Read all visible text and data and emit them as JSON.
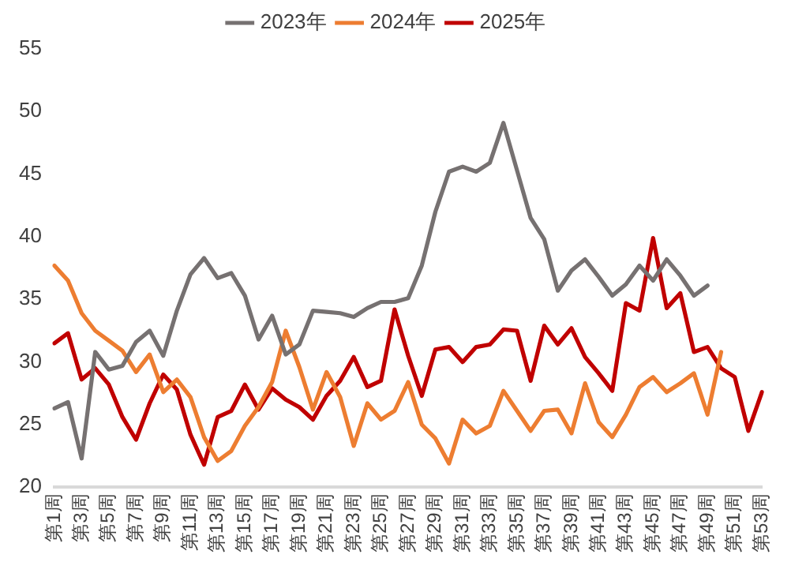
{
  "chart_data": {
    "type": "line",
    "categories": [
      "第1周",
      null,
      "第3周",
      null,
      "第5周",
      null,
      "第7周",
      null,
      "第9周",
      null,
      "第11周",
      null,
      "第13周",
      null,
      "第15周",
      null,
      "第17周",
      null,
      "第19周",
      null,
      "第21周",
      null,
      "第23周",
      null,
      "第25周",
      null,
      "第27周",
      null,
      "第29周",
      null,
      "第31周",
      null,
      "第33周",
      null,
      "第35周",
      null,
      "第37周",
      null,
      "第39周",
      null,
      "第41周",
      null,
      "第43周",
      null,
      "第45周",
      null,
      "第47周",
      null,
      "第49周",
      null,
      "第51周",
      null,
      "第53周"
    ],
    "series": [
      {
        "name": "2023年",
        "color": "#767171",
        "values": [
          26.3,
          26.8,
          22.3,
          30.8,
          29.4,
          29.7,
          31.6,
          32.5,
          30.5,
          34.1,
          37.0,
          38.3,
          36.7,
          37.1,
          35.3,
          31.8,
          33.7,
          30.6,
          31.4,
          34.1,
          34.0,
          33.9,
          33.6,
          34.3,
          34.8,
          34.8,
          35.1,
          37.7,
          42.0,
          45.2,
          45.6,
          45.2,
          45.9,
          49.1,
          45.3,
          41.5,
          39.8,
          35.7,
          37.3,
          38.2,
          36.8,
          35.3,
          36.2,
          37.7,
          36.5,
          38.2,
          36.9,
          35.3,
          36.1,
          null,
          null,
          null,
          null
        ]
      },
      {
        "name": "2024年",
        "color": "#ed7d31",
        "values": [
          37.7,
          36.5,
          33.9,
          32.5,
          31.7,
          30.9,
          29.2,
          30.6,
          27.6,
          28.6,
          27.2,
          24.0,
          22.1,
          22.9,
          24.9,
          26.4,
          28.4,
          32.5,
          29.6,
          26.2,
          29.2,
          27.2,
          23.3,
          26.7,
          25.4,
          26.1,
          28.4,
          25.0,
          23.9,
          21.9,
          25.4,
          24.3,
          24.9,
          27.7,
          26.1,
          24.5,
          26.1,
          26.2,
          24.3,
          28.3,
          25.2,
          24.0,
          25.8,
          28.0,
          28.8,
          27.6,
          28.3,
          29.1,
          25.8,
          30.8,
          null,
          null,
          null
        ]
      },
      {
        "name": "2025年",
        "color": "#c00000",
        "values": [
          31.5,
          32.3,
          28.6,
          29.5,
          28.2,
          25.6,
          23.8,
          26.7,
          29.0,
          27.8,
          24.2,
          21.8,
          25.6,
          26.1,
          28.2,
          26.2,
          27.9,
          27.0,
          26.4,
          25.4,
          27.3,
          28.5,
          30.4,
          28.0,
          28.5,
          34.2,
          30.5,
          27.3,
          31.0,
          31.2,
          30.0,
          31.2,
          31.4,
          32.6,
          32.5,
          28.5,
          32.9,
          31.4,
          32.7,
          30.4,
          29.1,
          27.7,
          34.7,
          34.1,
          39.9,
          34.3,
          35.5,
          30.8,
          31.2,
          29.5,
          28.8,
          24.5,
          27.6
        ]
      }
    ],
    "ylim": [
      20,
      55
    ],
    "yticks": [
      20,
      25,
      30,
      35,
      40,
      45,
      50,
      55
    ],
    "grid": false,
    "legend": "top",
    "marker": "none",
    "line_style": "solid"
  }
}
